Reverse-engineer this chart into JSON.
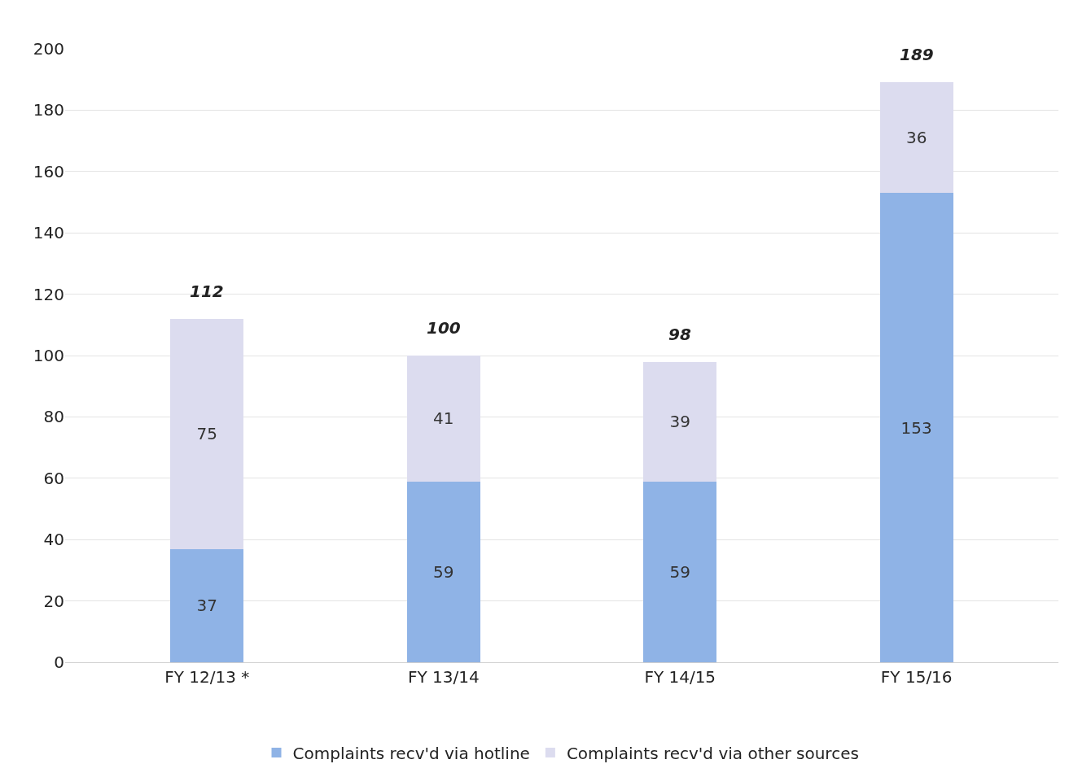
{
  "chart_data": {
    "type": "bar",
    "stacked": true,
    "categories": [
      "FY 12/13 *",
      "FY 13/14",
      "FY 14/15",
      "FY 15/16"
    ],
    "series": [
      {
        "name": "Complaints recv'd via hotline",
        "color": "#8fb3e6",
        "values": [
          37,
          59,
          59,
          153
        ]
      },
      {
        "name": "Complaints recv'd via other sources",
        "color": "#dcdcef",
        "values": [
          75,
          41,
          39,
          36
        ]
      }
    ],
    "totals": [
      "112",
      "100",
      "98",
      "189"
    ],
    "data_labels": true,
    "ylim": [
      0,
      200
    ],
    "yticks": [
      0,
      20,
      40,
      60,
      80,
      100,
      120,
      140,
      160,
      180,
      200
    ],
    "grid": "y",
    "legend": "bottom"
  }
}
